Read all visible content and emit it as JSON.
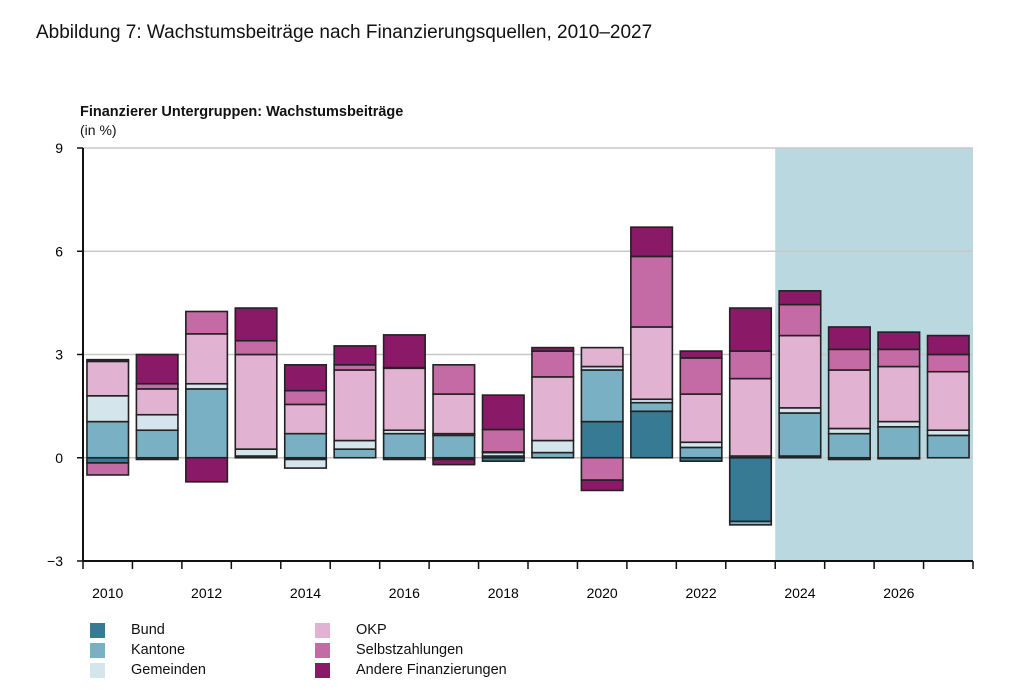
{
  "title": "Abbildung 7: Wachstumsbeiträge nach Finanzierungsquellen, 2010–2027",
  "chart_data": {
    "type": "bar",
    "stacked": true,
    "title": "Finanzierer Untergruppen: Wachstumsbeiträge",
    "ylabel": "(in %)",
    "xlabel": "",
    "ylim": [
      -3,
      9
    ],
    "yticks": [
      -3,
      0,
      3,
      6,
      9
    ],
    "grid": true,
    "legend_position": "bottom",
    "forecast_shaded_from": "2024",
    "forecast_color": "#b9d8e0",
    "categories": [
      "2010",
      "2011",
      "2012",
      "2013",
      "2014",
      "2015",
      "2016",
      "2017",
      "2018",
      "2019",
      "2020",
      "2021",
      "2022",
      "2023",
      "2024",
      "2025",
      "2026",
      "2027"
    ],
    "xtick_labels": [
      "2010",
      "2012",
      "2014",
      "2016",
      "2018",
      "2020",
      "2022",
      "2024",
      "2026"
    ],
    "series": [
      {
        "name": "Bund",
        "color": "#377a93",
        "values": [
          -0.15,
          -0.05,
          0,
          0,
          -0.05,
          0,
          -0.05,
          -0.05,
          -0.1,
          0,
          1.05,
          1.35,
          -0.1,
          -1.85,
          0.05,
          -0.05,
          -0.03,
          0
        ]
      },
      {
        "name": "Kantone",
        "color": "#79b0c4",
        "values": [
          1.05,
          0.8,
          2.0,
          0.05,
          0.7,
          0.25,
          0.7,
          0.65,
          0.05,
          0.15,
          1.5,
          0.25,
          0.3,
          -0.1,
          1.25,
          0.7,
          0.9,
          0.65
        ]
      },
      {
        "name": "Gemeinden",
        "color": "#d4e6ec",
        "values": [
          0.75,
          0.45,
          0.15,
          0.2,
          -0.25,
          0.25,
          0.1,
          0.05,
          0.1,
          0.35,
          0.1,
          0.1,
          0.15,
          0.05,
          0.15,
          0.15,
          0.15,
          0.15
        ]
      },
      {
        "name": "OKP",
        "color": "#e2b2d2",
        "values": [
          1.0,
          0.75,
          1.45,
          2.75,
          0.85,
          2.05,
          1.8,
          1.15,
          0.02,
          1.85,
          0.55,
          2.1,
          1.4,
          2.25,
          2.1,
          1.7,
          1.6,
          1.7
        ]
      },
      {
        "name": "Selbstzahlungen",
        "color": "#c46aa5",
        "values": [
          -0.35,
          0.15,
          0.65,
          0.4,
          0.4,
          0.15,
          0.02,
          0.85,
          0.65,
          0.75,
          -0.65,
          2.05,
          1.05,
          0.8,
          0.9,
          0.6,
          0.5,
          0.5
        ]
      },
      {
        "name": "Andere Finanzierungen",
        "color": "#8a1a67",
        "values": [
          0.05,
          0.85,
          -0.7,
          0.95,
          0.75,
          0.55,
          0.95,
          -0.15,
          1.0,
          0.1,
          -0.3,
          0.85,
          0.2,
          1.25,
          0.4,
          0.65,
          0.5,
          0.55
        ]
      }
    ]
  }
}
